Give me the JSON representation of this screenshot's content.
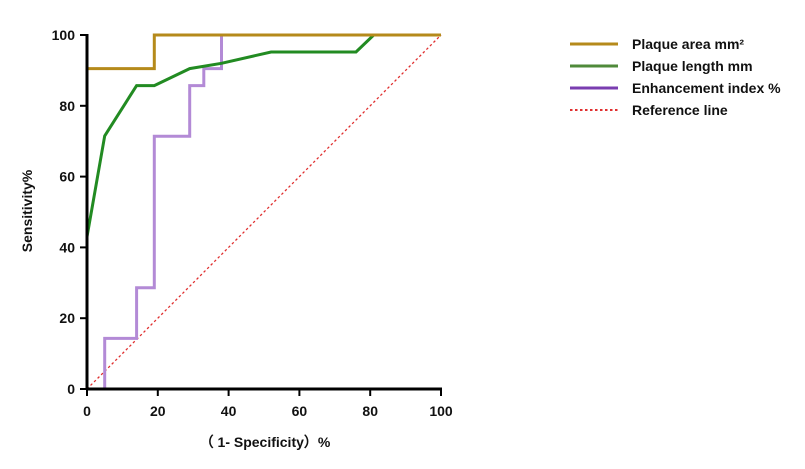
{
  "chart_data": {
    "type": "line",
    "title": "",
    "xlabel": "（ 1- Specificity）%",
    "ylabel": "Sensitivity%",
    "xlim": [
      0,
      100
    ],
    "ylim": [
      0,
      100
    ],
    "xticks": [
      "0",
      "20",
      "40",
      "60",
      "80",
      "100"
    ],
    "yticks": [
      "0",
      "20",
      "40",
      "60",
      "80",
      "100"
    ],
    "grid": false,
    "legend_position": "top-right",
    "series": [
      {
        "name": "Plaque area mm²",
        "color": "#b58a1b",
        "x": [
          0,
          0,
          0,
          19,
          19,
          38,
          100
        ],
        "y": [
          0,
          43,
          90.5,
          90.5,
          100,
          100,
          100
        ]
      },
      {
        "name": "Plaque length mm",
        "color": "#228b22",
        "x": [
          0,
          0,
          5,
          14,
          19,
          29,
          38,
          52,
          76,
          81,
          100
        ],
        "y": [
          0,
          43,
          71.5,
          85.7,
          85.7,
          90.5,
          92,
          95.2,
          95.2,
          100,
          100
        ]
      },
      {
        "name": "Enhancement index %",
        "color": "#b38ad6",
        "x": [
          5,
          5,
          14,
          14,
          19,
          19,
          29,
          29,
          33,
          33,
          38,
          38,
          100
        ],
        "y": [
          0,
          14.3,
          14.3,
          28.6,
          28.6,
          71.4,
          71.4,
          85.7,
          85.7,
          90.5,
          90.5,
          100,
          100
        ]
      },
      {
        "name": "Reference line",
        "color": "#e03030",
        "dashed": true,
        "x": [
          0,
          100
        ],
        "y": [
          0,
          100
        ]
      }
    ],
    "legend": [
      {
        "label": "Plaque area mm²",
        "color": "#b58a1b",
        "style": "solid"
      },
      {
        "label": "Plaque length mm",
        "color": "#4f8a3a",
        "style": "solid"
      },
      {
        "label": "Enhancement index %",
        "color": "#7a3db0",
        "style": "solid"
      },
      {
        "label": "Reference line",
        "color": "#e03030",
        "style": "dotted"
      }
    ]
  }
}
